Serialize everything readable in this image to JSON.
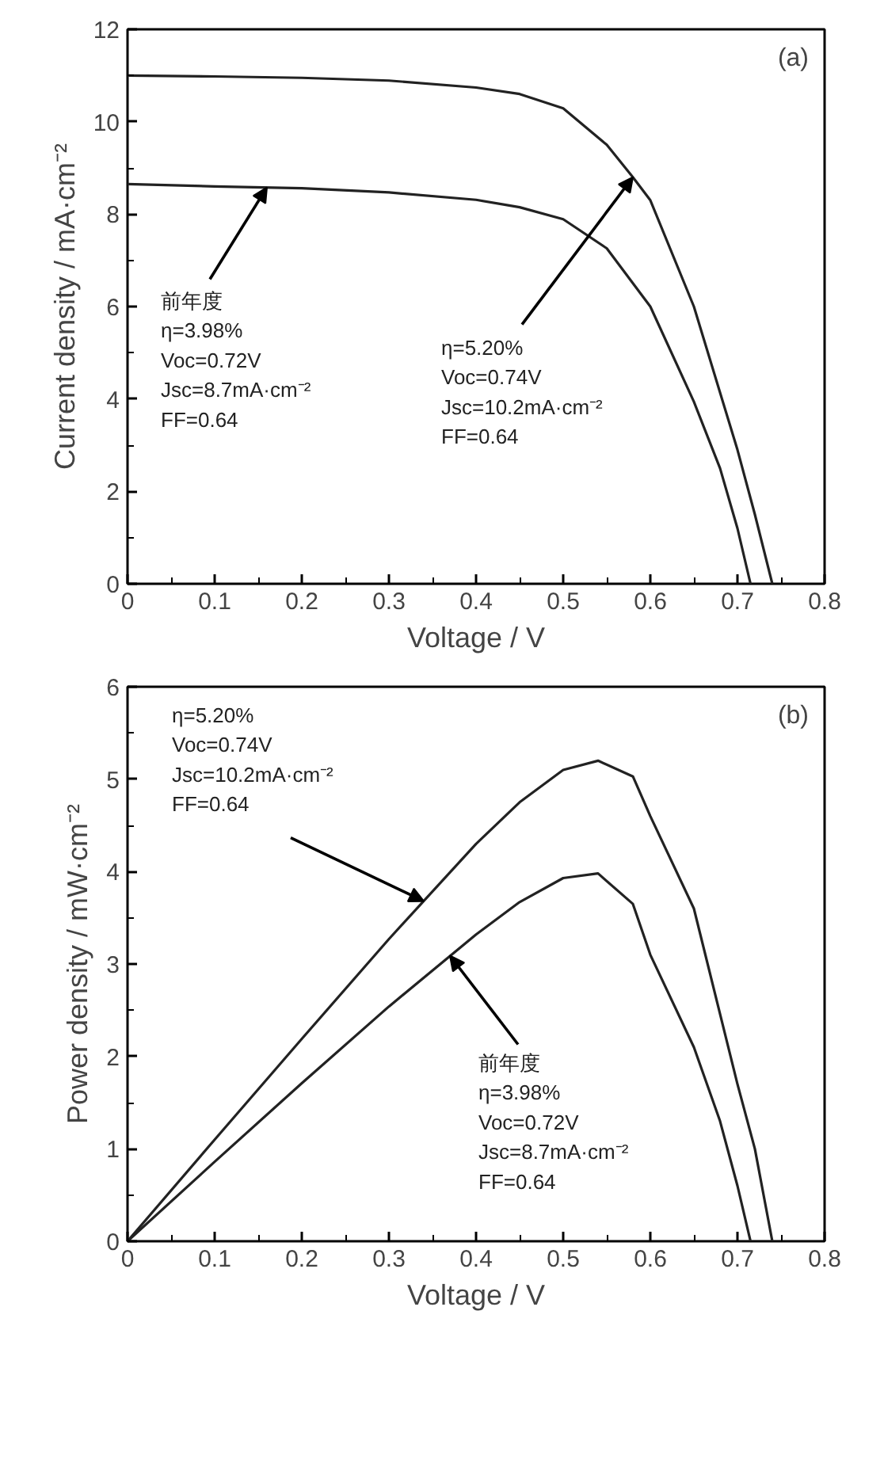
{
  "chart_data": [
    {
      "type": "line",
      "xlabel": "Voltage / V",
      "ylabel": "Current density / mA·cm⁻²",
      "xlim": [
        0,
        0.8
      ],
      "ylim": [
        0,
        12
      ],
      "xticks": [
        0,
        0.1,
        0.2,
        0.3,
        0.4,
        0.5,
        0.6,
        0.7,
        0.8
      ],
      "yticks": [
        0,
        2,
        4,
        6,
        8,
        10,
        12
      ],
      "grid": false,
      "marker": "none",
      "line_style": "solid",
      "series": [
        {
          "color": "#222222",
          "x": [
            0,
            0.1,
            0.2,
            0.3,
            0.4,
            0.45,
            0.5,
            0.55,
            0.58,
            0.6,
            0.65,
            0.7,
            0.72,
            0.74
          ],
          "values": [
            11.0,
            10.98,
            10.95,
            10.89,
            10.74,
            10.6,
            10.29,
            9.5,
            8.8,
            8.3,
            6.0,
            2.9,
            1.5,
            0
          ]
        },
        {
          "color": "#222222",
          "x": [
            0,
            0.1,
            0.2,
            0.3,
            0.4,
            0.45,
            0.5,
            0.55,
            0.6,
            0.65,
            0.68,
            0.7,
            0.715
          ],
          "values": [
            8.65,
            8.6,
            8.56,
            8.47,
            8.31,
            8.15,
            7.89,
            7.26,
            6.0,
            3.94,
            2.5,
            1.2,
            0
          ]
        }
      ],
      "annotations": [
        "(a)",
        {
          "text": "前年度\nη=3.98%\nVoc=0.72V\nJsc=8.7mA·cm⁻²\nFF=0.64",
          "x": 0.16,
          "y": 8.58
        },
        {
          "text": "η=5.20%\nVoc=0.74V\nJsc=10.2mA·cm⁻²\nFF=0.64",
          "x": 0.58,
          "y": 8.8
        }
      ]
    },
    {
      "type": "line",
      "xlabel": "Voltage / V",
      "ylabel": "Power density / mW·cm⁻²",
      "xlim": [
        0,
        0.8
      ],
      "ylim": [
        0,
        6
      ],
      "xticks": [
        0,
        0.1,
        0.2,
        0.3,
        0.4,
        0.5,
        0.6,
        0.7,
        0.8
      ],
      "yticks": [
        0,
        1,
        2,
        3,
        4,
        5,
        6
      ],
      "grid": false,
      "marker": "none",
      "line_style": "solid",
      "series": [
        {
          "color": "#222222",
          "x": [
            0,
            0.1,
            0.2,
            0.3,
            0.4,
            0.45,
            0.5,
            0.54,
            0.58,
            0.6,
            0.65,
            0.7,
            0.72,
            0.74
          ],
          "values": [
            0,
            1.1,
            2.19,
            3.27,
            4.3,
            4.75,
            5.1,
            5.2,
            5.03,
            4.6,
            3.6,
            1.7,
            1.0,
            0
          ]
        },
        {
          "color": "#222222",
          "x": [
            0,
            0.1,
            0.2,
            0.3,
            0.4,
            0.45,
            0.5,
            0.54,
            0.58,
            0.6,
            0.65,
            0.68,
            0.7,
            0.715
          ],
          "values": [
            0,
            0.86,
            1.71,
            2.54,
            3.32,
            3.67,
            3.93,
            3.98,
            3.65,
            3.1,
            2.1,
            1.3,
            0.6,
            0
          ]
        }
      ],
      "annotations": [
        "(b)",
        {
          "text": "η=5.20%\nVoc=0.74V\nJsc=10.2mA·cm⁻²\nFF=0.64",
          "x": 0.34,
          "y": 3.68
        },
        {
          "text": "前年度\nη=3.98%\nVoc=0.72V\nJsc=8.7mA·cm⁻²\nFF=0.64",
          "x": 0.37,
          "y": 3.09
        }
      ]
    }
  ]
}
